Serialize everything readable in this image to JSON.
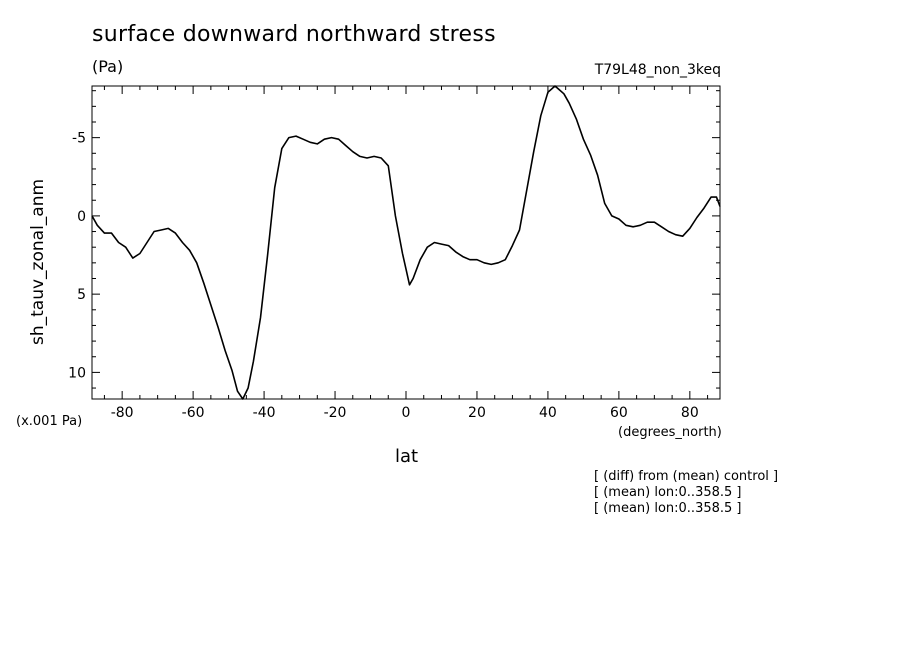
{
  "chart_data": {
    "type": "line",
    "title": "surface downward northward stress",
    "units": "(Pa)",
    "run_id": "T79L48_non_3keq",
    "ylabel": "sh_tauv_zonal_anm",
    "xlabel": "lat",
    "x_unit": "(degrees_north)",
    "y_scale_note": "(x.001 Pa)",
    "xlim": [
      -88.5,
      88.5
    ],
    "ylim": [
      11.7,
      -8.3
    ],
    "y_inverted": true,
    "grid": false,
    "xticks": [
      -80,
      -60,
      -40,
      -20,
      0,
      20,
      40,
      60,
      80
    ],
    "xtick_labels": [
      "-80",
      "-60",
      "-40",
      "-20",
      "0",
      "20",
      "40",
      "60",
      "80"
    ],
    "yticks": [
      -5,
      0,
      5,
      10
    ],
    "ytick_labels": [
      "-5",
      "0",
      "5",
      "10"
    ],
    "line_color": "#000000",
    "series": [
      {
        "x": [
          -88.5,
          -87.0,
          -85.0,
          -83.0,
          -81.0,
          -79.0,
          -77.0,
          -75.0,
          -73.0,
          -71.0,
          -69.0,
          -67.0,
          -65.0,
          -63.0,
          -61.0,
          -59.0,
          -57.0,
          -55.0,
          -53.0,
          -51.0,
          -49.0,
          -47.5,
          -46.0,
          -44.5,
          -43.0,
          -41.0,
          -39.0,
          -37.0,
          -35.0,
          -33.0,
          -31.0,
          -29.0,
          -27.0,
          -25.0,
          -23.0,
          -21.0,
          -19.0,
          -17.0,
          -15.0,
          -13.0,
          -11.0,
          -9.0,
          -7.0,
          -5.0,
          -3.0,
          -1.0,
          0.0,
          1.0,
          2.0,
          4.0,
          6.0,
          8.0,
          10.0,
          12.0,
          14.0,
          16.0,
          18.0,
          20.0,
          22.0,
          24.0,
          26.0,
          28.0,
          30.0,
          32.0,
          34.0,
          36.0,
          38.0,
          40.0,
          42.0,
          43.0,
          44.5,
          46.0,
          48.0,
          50.0,
          52.0,
          54.0,
          56.0,
          58.0,
          60.0,
          62.0,
          64.0,
          66.0,
          68.0,
          70.0,
          72.0,
          74.0,
          76.0,
          78.0,
          80.0,
          82.0,
          84.0,
          86.0,
          87.5,
          88.5
        ],
        "y": [
          0.0,
          0.6,
          1.1,
          1.1,
          1.7,
          2.0,
          2.7,
          2.4,
          1.7,
          1.0,
          0.9,
          0.8,
          1.1,
          1.7,
          2.2,
          3.0,
          4.3,
          5.7,
          7.1,
          8.6,
          9.9,
          11.2,
          11.7,
          11.0,
          9.3,
          6.5,
          2.5,
          -1.8,
          -4.3,
          -5.0,
          -5.1,
          -4.9,
          -4.7,
          -4.6,
          -4.9,
          -5.0,
          -4.9,
          -4.5,
          -4.1,
          -3.8,
          -3.7,
          -3.8,
          -3.7,
          -3.2,
          0.0,
          2.4,
          3.4,
          4.4,
          4.0,
          2.8,
          2.0,
          1.7,
          1.8,
          1.9,
          2.3,
          2.6,
          2.8,
          2.8,
          3.0,
          3.1,
          3.0,
          2.8,
          1.9,
          0.9,
          -1.6,
          -4.1,
          -6.4,
          -7.9,
          -8.3,
          -8.1,
          -7.8,
          -7.2,
          -6.2,
          -4.9,
          -3.9,
          -2.6,
          -0.8,
          0.0,
          0.2,
          0.6,
          0.7,
          0.6,
          0.4,
          0.4,
          0.7,
          1.0,
          1.2,
          1.3,
          0.8,
          0.1,
          -0.5,
          -1.2,
          -1.2,
          -0.6
        ]
      }
    ]
  },
  "annotations": [
    "[ (diff) from (mean) control ]",
    "[ (mean) lon:0..358.5 ]",
    "[ (mean) lon:0..358.5 ]"
  ]
}
